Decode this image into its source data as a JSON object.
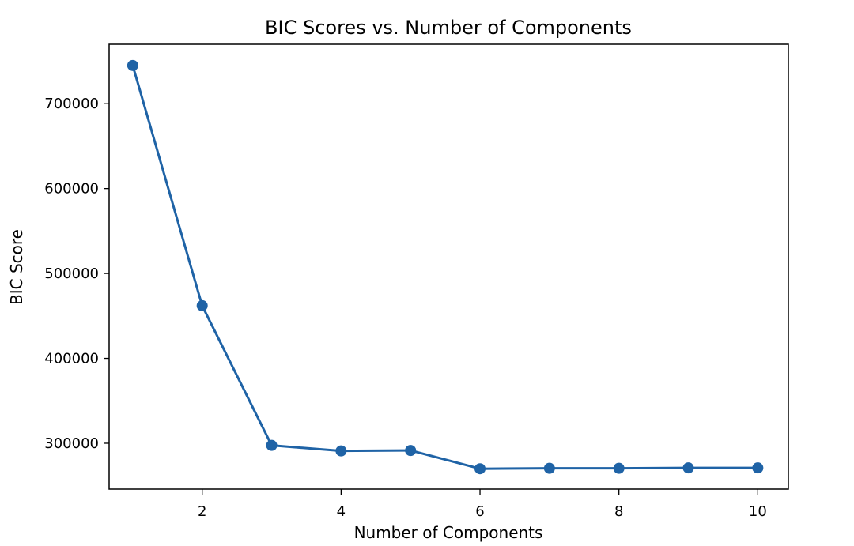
{
  "chart_data": {
    "type": "line",
    "title": "BIC Scores vs. Number of Components",
    "xlabel": "Number of Components",
    "ylabel": "BIC Score",
    "x": [
      1,
      2,
      3,
      4,
      5,
      6,
      7,
      8,
      9,
      10
    ],
    "series": [
      {
        "values": [
          745000,
          462000,
          297500,
          291000,
          291500,
          270000,
          270500,
          270500,
          271000,
          271000
        ],
        "color": "#1f63a6",
        "marker": "circle"
      }
    ],
    "xticks": [
      2,
      4,
      6,
      8,
      10
    ],
    "xtick_labels": [
      "2",
      "4",
      "6",
      "8",
      "10"
    ],
    "yticks": [
      300000,
      400000,
      500000,
      600000,
      700000
    ],
    "ytick_labels": [
      "300000",
      "400000",
      "500000",
      "600000",
      "700000"
    ],
    "xlim": [
      0.66,
      10.44
    ],
    "ylim": [
      246000,
      770000
    ],
    "grid": false,
    "legend": "none"
  }
}
